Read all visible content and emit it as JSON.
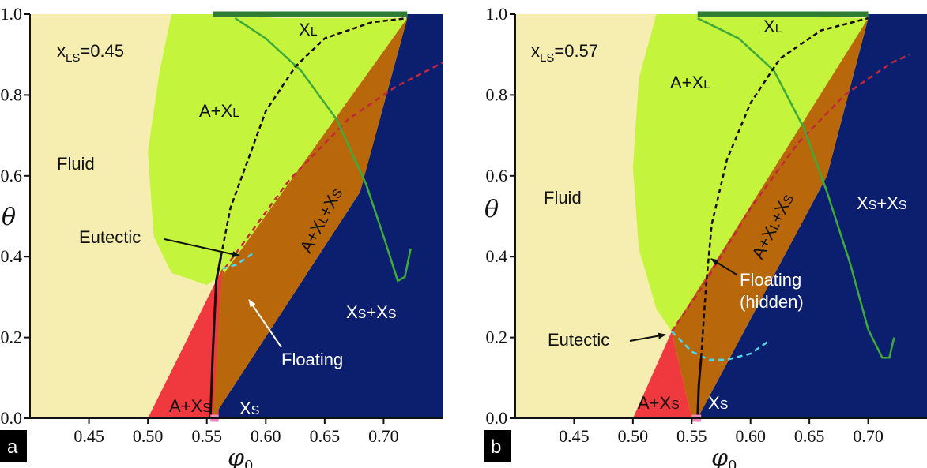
{
  "figure": {
    "x_axis_symbol": "φ",
    "x_axis_subscript": "0",
    "y_axis_symbol": "θ"
  },
  "chart_data": [
    {
      "type": "area",
      "panel_label": "a",
      "parameter": {
        "symbol": "x",
        "subscript": "LS",
        "value": "=0.45"
      },
      "x_ticks": [
        "0.45",
        "0.50",
        "0.55",
        "0.60",
        "0.65",
        "0.70"
      ],
      "y_ticks": [
        "0.0",
        "0.2",
        "0.4",
        "0.6",
        "0.8",
        "1.0"
      ],
      "xlim": [
        0.4,
        0.75
      ],
      "ylim": [
        0.0,
        1.0
      ],
      "grid": false,
      "colors": {
        "fluid": "#f5eeb0",
        "a_xl": "#c4f43c",
        "a_xs": "#f0393e",
        "a_xl_xs": "#b8680a",
        "xs_xs": "#0b1f6e",
        "xl_bar": "#2e7d32",
        "xs_bar": "#f28ab8",
        "green_curve": "#3daa3a",
        "black_curve": "#1a0a0a",
        "red_dashed": "#c2283a",
        "cyan_dashed": "#54d2e8"
      },
      "labels": {
        "fluid": "Fluid",
        "a_xl_main": "A+X",
        "a_xl_sub": "L",
        "xl_main": "X",
        "xl_sub": "L",
        "a_xs_main": "A+X",
        "a_xs_sub": "S",
        "xs_main": "X",
        "xs_sub": "S",
        "xs_xs_a": "X",
        "xs_xs_a_sub": "S",
        "xs_xs_plus": "+X",
        "xs_xs_b_sub": "S",
        "a_xl_xs": "A+X",
        "a_xl_xs_sub1": "L",
        "a_xl_xs_plus": "+X",
        "a_xl_xs_sub2": "S",
        "eutectic": "Eutectic",
        "floating": "Floating"
      },
      "regions": [
        {
          "name": "A+XL",
          "polygon": [
            [
              0.61,
              0.99
            ],
            [
              0.555,
              1.0
            ],
            [
              0.52,
              1.0
            ],
            [
              0.51,
              0.86
            ],
            [
              0.5,
              0.66
            ],
            [
              0.505,
              0.45
            ],
            [
              0.52,
              0.36
            ],
            [
              0.55,
              0.33
            ],
            [
              0.565,
              0.36
            ],
            [
              0.72,
              0.99
            ]
          ]
        },
        {
          "name": "A+XS",
          "polygon": [
            [
              0.5,
              0.0
            ],
            [
              0.563,
              0.37
            ],
            [
              0.56,
              0.0
            ]
          ]
        },
        {
          "name": "A+XL+XS",
          "polygon": [
            [
              0.565,
              0.36
            ],
            [
              0.72,
              0.99
            ],
            [
              0.68,
              0.56
            ],
            [
              0.555,
              0.0
            ],
            [
              0.563,
              0.37
            ]
          ]
        },
        {
          "name": "XL",
          "segment": [
            [
              0.555,
              1.0
            ],
            [
              0.72,
              1.0
            ]
          ]
        },
        {
          "name": "XS",
          "segment": [
            [
              0.553,
              0.0
            ],
            [
              0.56,
              0.0
            ]
          ]
        }
      ],
      "curves": [
        {
          "name": "black-solid",
          "points": [
            [
              0.553,
              0.0
            ],
            [
              0.555,
              0.16
            ],
            [
              0.558,
              0.34
            ],
            [
              0.562,
              0.4
            ]
          ]
        },
        {
          "name": "black-dashed",
          "points": [
            [
              0.562,
              0.4
            ],
            [
              0.57,
              0.52
            ],
            [
              0.585,
              0.64
            ],
            [
              0.6,
              0.76
            ],
            [
              0.625,
              0.87
            ],
            [
              0.65,
              0.94
            ],
            [
              0.69,
              0.98
            ],
            [
              0.72,
              0.99
            ]
          ]
        },
        {
          "name": "green",
          "points": [
            [
              0.574,
              0.99
            ],
            [
              0.6,
              0.94
            ],
            [
              0.63,
              0.86
            ],
            [
              0.66,
              0.74
            ],
            [
              0.685,
              0.58
            ],
            [
              0.7,
              0.45
            ],
            [
              0.712,
              0.34
            ],
            [
              0.718,
              0.35
            ],
            [
              0.723,
              0.42
            ]
          ]
        },
        {
          "name": "red-dashed",
          "points": [
            [
              0.565,
              0.37
            ],
            [
              0.62,
              0.59
            ],
            [
              0.67,
              0.74
            ],
            [
              0.71,
              0.82
            ],
            [
              0.75,
              0.88
            ]
          ]
        },
        {
          "name": "cyan-dashed",
          "points": [
            [
              0.563,
              0.37
            ],
            [
              0.575,
              0.38
            ],
            [
              0.59,
              0.41
            ]
          ]
        }
      ],
      "annotations": [
        {
          "name": "eutectic",
          "point": [
            0.562,
            0.4
          ]
        },
        {
          "name": "floating",
          "point": [
            0.568,
            0.3
          ]
        }
      ]
    },
    {
      "type": "area",
      "panel_label": "b",
      "parameter": {
        "symbol": "x",
        "subscript": "LS",
        "value": "=0.57"
      },
      "x_ticks": [
        "0.45",
        "0.50",
        "0.55",
        "0.60",
        "0.65",
        "0.70"
      ],
      "y_ticks": [
        "0.0",
        "0.2",
        "0.4",
        "0.6",
        "0.8",
        "1.0"
      ],
      "xlim": [
        0.4,
        0.75
      ],
      "ylim": [
        0.0,
        1.0
      ],
      "grid": false,
      "colors": {
        "fluid": "#f5eeb0",
        "a_xl": "#c4f43c",
        "a_xs": "#f0393e",
        "a_xl_xs": "#b8680a",
        "xs_xs": "#0b1f6e",
        "xl_bar": "#2e7d32",
        "xs_bar": "#f28ab8",
        "green_curve": "#3daa3a",
        "black_curve": "#1a0a0a",
        "red_dashed": "#c2283a",
        "cyan_dashed": "#54d2e8"
      },
      "labels": {
        "fluid": "Fluid",
        "a_xl_main": "A+X",
        "a_xl_sub": "L",
        "xl_main": "X",
        "xl_sub": "L",
        "a_xs_main": "A+X",
        "a_xs_sub": "S",
        "xs_main": "X",
        "xs_sub": "S",
        "xs_xs_a": "X",
        "xs_xs_a_sub": "S",
        "xs_xs_plus": "+X",
        "xs_xs_b_sub": "S",
        "a_xl_xs": "A+X",
        "a_xl_xs_sub1": "L",
        "a_xl_xs_plus": "+X",
        "a_xl_xs_sub2": "S",
        "eutectic": "Eutectic",
        "floating_line1": "Floating",
        "floating_line2": "(hidden)"
      },
      "regions": [
        {
          "name": "A+XL",
          "polygon": [
            [
              0.555,
              1.0
            ],
            [
              0.52,
              1.0
            ],
            [
              0.505,
              0.84
            ],
            [
              0.5,
              0.62
            ],
            [
              0.505,
              0.42
            ],
            [
              0.52,
              0.27
            ],
            [
              0.533,
              0.215
            ],
            [
              0.7,
              0.99
            ]
          ]
        },
        {
          "name": "A+XS",
          "polygon": [
            [
              0.5,
              0.0
            ],
            [
              0.533,
              0.215
            ],
            [
              0.55,
              0.0
            ]
          ]
        },
        {
          "name": "A+XL+XS",
          "polygon": [
            [
              0.533,
              0.215
            ],
            [
              0.7,
              0.99
            ],
            [
              0.665,
              0.6
            ],
            [
              0.555,
              0.0
            ],
            [
              0.55,
              0.0
            ]
          ]
        },
        {
          "name": "XL",
          "segment": [
            [
              0.555,
              1.0
            ],
            [
              0.7,
              1.0
            ]
          ]
        },
        {
          "name": "XS",
          "segment": [
            [
              0.55,
              0.0
            ],
            [
              0.558,
              0.0
            ]
          ]
        }
      ],
      "curves": [
        {
          "name": "black-solid",
          "points": [
            [
              0.555,
              0.0
            ],
            [
              0.556,
              0.08
            ],
            [
              0.558,
              0.15
            ]
          ]
        },
        {
          "name": "black-dashed",
          "points": [
            [
              0.558,
              0.15
            ],
            [
              0.562,
              0.32
            ],
            [
              0.567,
              0.48
            ],
            [
              0.58,
              0.64
            ],
            [
              0.6,
              0.78
            ],
            [
              0.625,
              0.89
            ],
            [
              0.66,
              0.96
            ],
            [
              0.7,
              0.99
            ]
          ]
        },
        {
          "name": "green",
          "points": [
            [
              0.555,
              0.99
            ],
            [
              0.59,
              0.94
            ],
            [
              0.62,
              0.86
            ],
            [
              0.645,
              0.72
            ],
            [
              0.665,
              0.56
            ],
            [
              0.685,
              0.38
            ],
            [
              0.7,
              0.22
            ],
            [
              0.712,
              0.15
            ],
            [
              0.718,
              0.15
            ],
            [
              0.722,
              0.2
            ]
          ]
        },
        {
          "name": "red-dashed",
          "points": [
            [
              0.533,
              0.215
            ],
            [
              0.56,
              0.33
            ],
            [
              0.6,
              0.52
            ],
            [
              0.64,
              0.68
            ],
            [
              0.68,
              0.8
            ],
            [
              0.72,
              0.88
            ],
            [
              0.735,
              0.9
            ]
          ]
        },
        {
          "name": "cyan-dashed",
          "points": [
            [
              0.533,
              0.215
            ],
            [
              0.55,
              0.165
            ],
            [
              0.565,
              0.145
            ],
            [
              0.58,
              0.145
            ],
            [
              0.6,
              0.16
            ],
            [
              0.615,
              0.19
            ]
          ]
        }
      ],
      "annotations": [
        {
          "name": "eutectic",
          "point": [
            0.533,
            0.215
          ]
        },
        {
          "name": "floating-hidden",
          "point": [
            0.563,
            0.385
          ]
        }
      ]
    }
  ]
}
